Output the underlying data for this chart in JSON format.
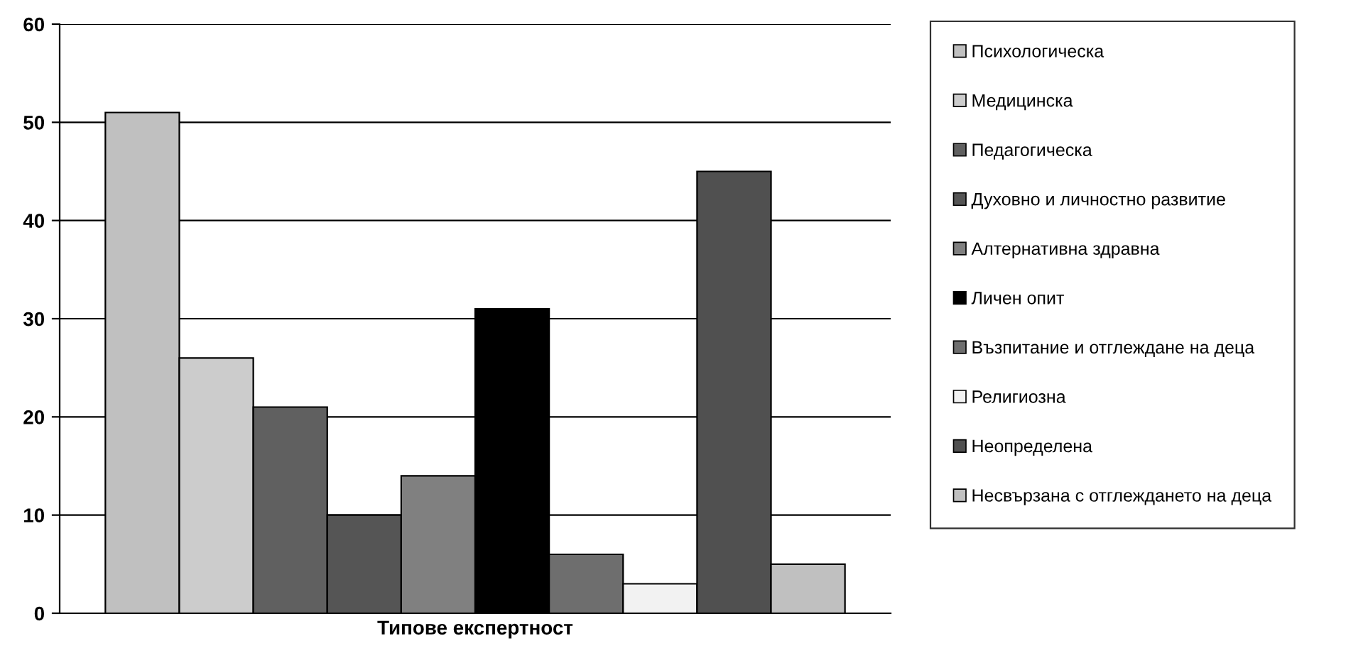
{
  "chart_data": {
    "type": "bar",
    "categories": [
      "Типове експертност"
    ],
    "ylim": [
      0,
      60
    ],
    "yticks": [
      0,
      10,
      20,
      30,
      40,
      50,
      60
    ],
    "grid": "y",
    "legend": "right",
    "series": [
      {
        "name": "Психологическа",
        "color": "#c0c0c0",
        "values": [
          51
        ]
      },
      {
        "name": "Медицинска",
        "color": "#cccccc",
        "values": [
          26
        ]
      },
      {
        "name": "Педагогическа",
        "color": "#606060",
        "values": [
          21
        ]
      },
      {
        "name": "Духовно и личностно развитие",
        "color": "#555555",
        "values": [
          10
        ]
      },
      {
        "name": "Алтернативна здравна",
        "color": "#808080",
        "values": [
          14
        ]
      },
      {
        "name": "Личен опит",
        "color": "#000000",
        "values": [
          31
        ]
      },
      {
        "name": "Възпитание и отглеждане на деца",
        "color": "#6e6e6e",
        "values": [
          6
        ]
      },
      {
        "name": "Религиозна",
        "color": "#f2f2f2",
        "values": [
          3
        ]
      },
      {
        "name": "Неопределена",
        "color": "#505050",
        "values": [
          45
        ]
      },
      {
        "name": "Несвързана с отглеждането на деца",
        "color": "#c0c0c0",
        "values": [
          5
        ]
      }
    ]
  }
}
